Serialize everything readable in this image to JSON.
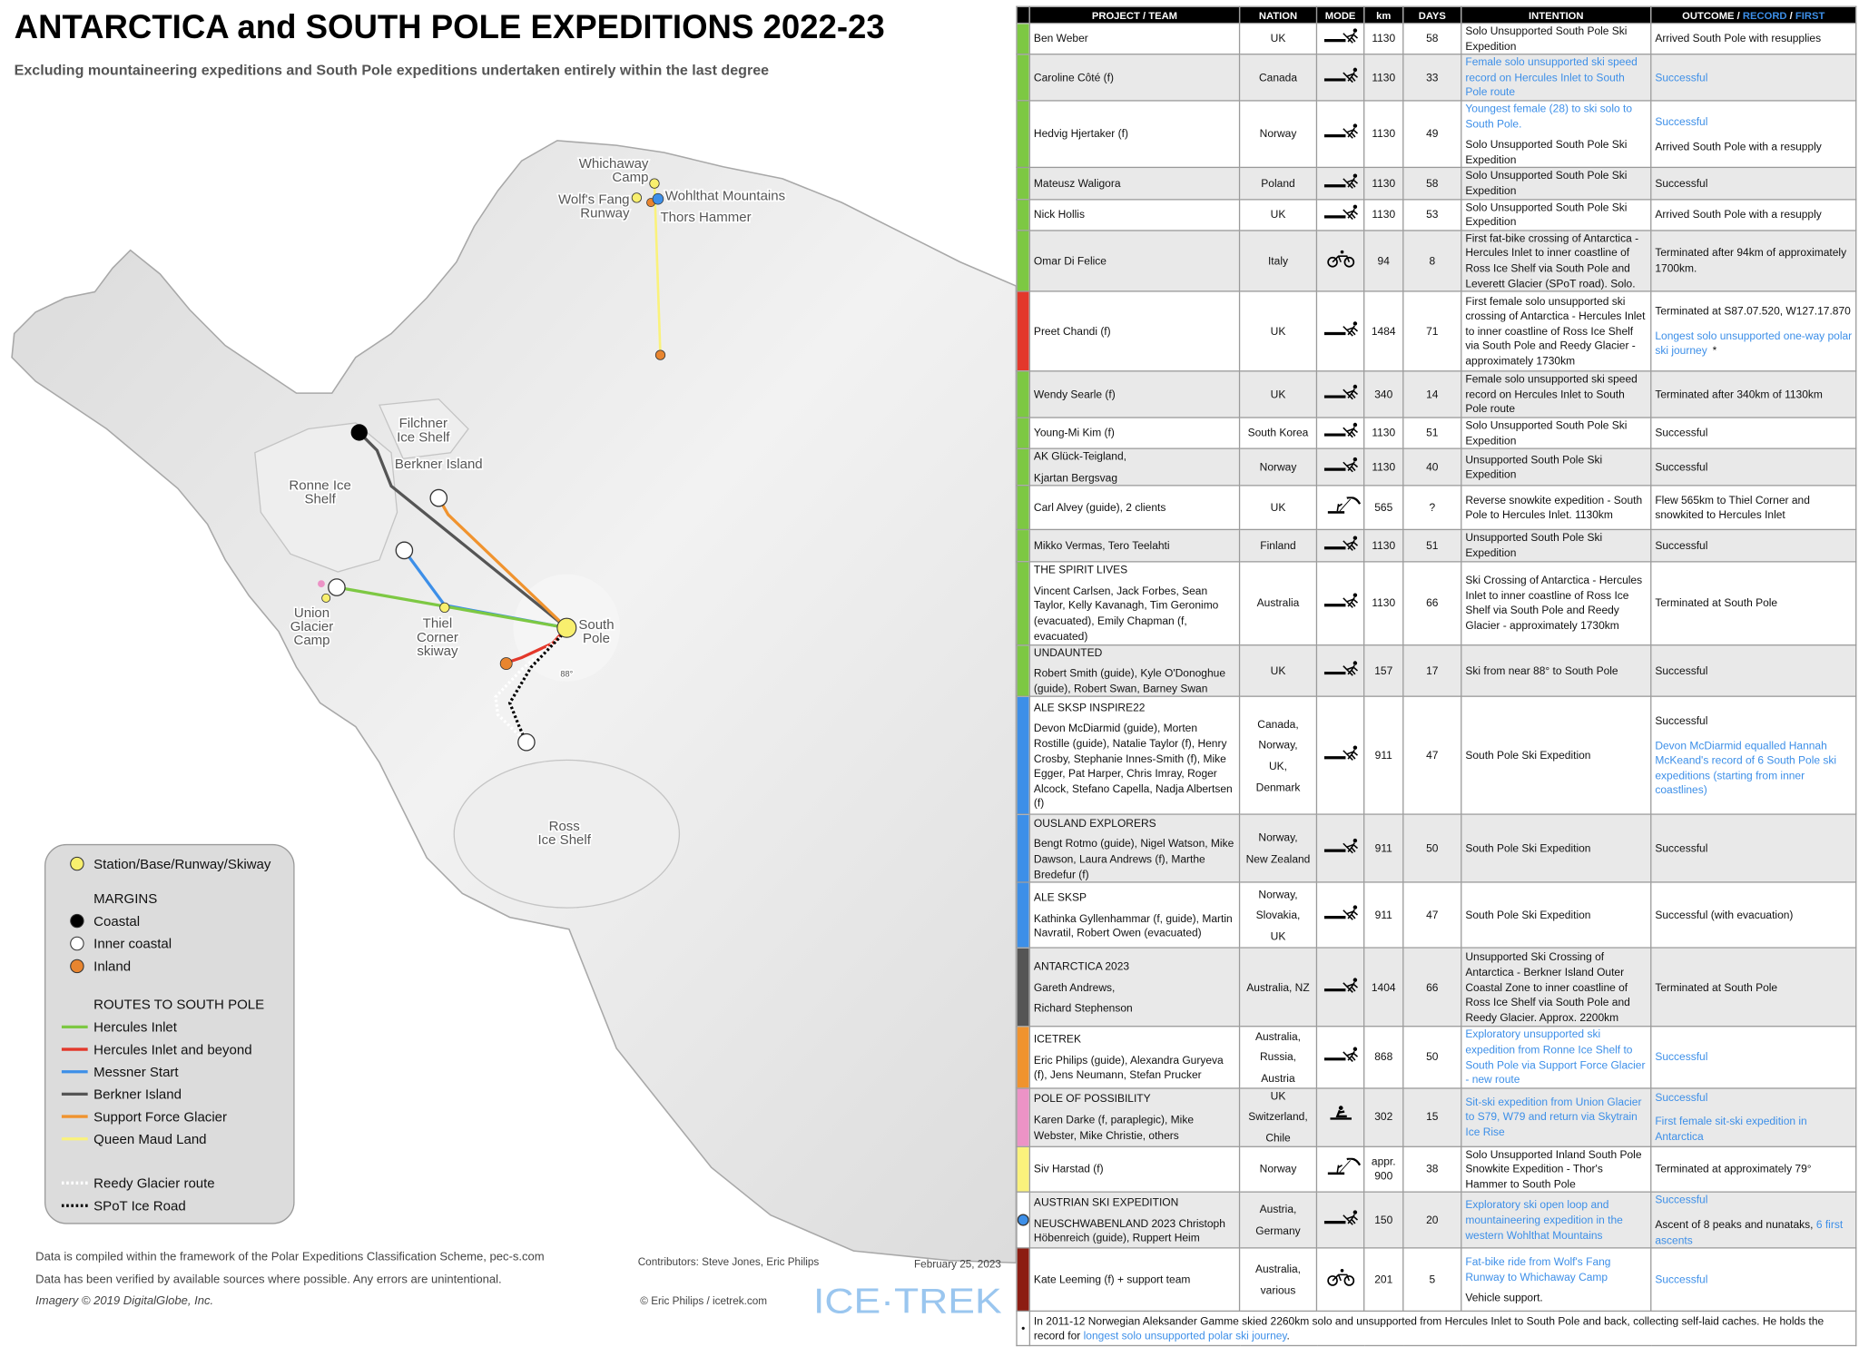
{
  "header": {
    "title": "ANTARCTICA and SOUTH POLE EXPEDITIONS 2022-23",
    "subtitle": "Excluding mountaineering expeditions and South Pole expeditions undertaken entirely within the last degree"
  },
  "map": {
    "labels": [
      [
        "Whichaway",
        "Camp"
      ],
      [
        "Wolf's Fang",
        "Runway"
      ],
      [
        "Wohlthat Mountains"
      ],
      [
        "Thors Hammer"
      ],
      [
        "Filchner",
        "Ice Shelf"
      ],
      [
        "Berkner Island"
      ],
      [
        "Ronne Ice",
        "Shelf"
      ],
      [
        "Union",
        "Glacier",
        "Camp"
      ],
      [
        "Thiel",
        "Corner",
        "skiway"
      ],
      [
        "South",
        "Pole"
      ],
      [
        "88°"
      ],
      [
        "Ross",
        "Ice Shelf"
      ]
    ]
  },
  "legend": {
    "station": {
      "label": "Station/Base/Runway/Skiway",
      "color": "#f8ef6e"
    },
    "margins": {
      "title": "MARGINS",
      "items": [
        {
          "label": "Coastal",
          "color": "#000000"
        },
        {
          "label": "Inner coastal",
          "color": "#ffffff"
        },
        {
          "label": "Inland",
          "color": "#e8852f"
        }
      ]
    },
    "routes": {
      "title": "ROUTES TO SOUTH POLE",
      "items": [
        {
          "label": "Hercules Inlet",
          "color": "#7dc843"
        },
        {
          "label": "Hercules Inlet and beyond",
          "color": "#e3382b"
        },
        {
          "label": "Messner Start",
          "color": "#3d8fe8"
        },
        {
          "label": "Berkner Island",
          "color": "#555555"
        },
        {
          "label": "Support Force Glacier",
          "color": "#f0932e"
        },
        {
          "label": "Queen Maud Land",
          "color": "#faf27c"
        }
      ]
    },
    "paths": [
      {
        "label": "Reedy Glacier route",
        "color": "#ffffff"
      },
      {
        "label": "SPoT Ice Road",
        "color": "#000000"
      }
    ]
  },
  "footer": {
    "note1": "Data is compiled within the framework of the Polar Expeditions Classification Scheme, pec-s.com",
    "note2": "Data has been verified by available sources where possible. Any errors are unintentional.",
    "imagery": "Imagery © 2019 DigitalGlobe, Inc.",
    "contributors": "Contributors: Steve Jones, Eric Philips",
    "date": "February 25, 2023",
    "copyright": "© Eric Philips / icetrek.com",
    "logo": "ICE·TREK"
  },
  "table": {
    "columns": [
      "PROJECT / TEAM",
      "NATION",
      "MODE",
      "km",
      "DAYS",
      "INTENTION",
      [
        [
          "OUTCOME / ",
          {
            "text": "RECORD",
            "color": "#3d8fe8"
          },
          " / ",
          {
            "text": "FIRST",
            "color": "#3d8fe8"
          }
        ]
      ]
    ],
    "rows": [
      {
        "color": "#7dc843",
        "project": "Ben Weber",
        "nation": "UK",
        "km": 1130,
        "days": 58,
        "intention": "Solo Unsupported South Pole Ski Expedition",
        "outcome": "Arrived South Pole with resupplies"
      },
      {
        "color": "#7dc843",
        "project": "Caroline Côté (f)",
        "nation": "Canada",
        "km": 1130,
        "days": 33,
        "intention": {
          "text": "Female solo unsupported ski speed record on Hercules Inlet to South Pole route",
          "color": "#3d8fe8"
        },
        "outcome": {
          "text": "Successful",
          "color": "#3d8fe8"
        }
      },
      {
        "color": "#7dc843",
        "project": "Hedvig Hjertaker (f)",
        "nation": "Norway",
        "km": 1130,
        "days": 49,
        "intention": [
          {
            "text": "Youngest female (28) to ski solo to South Pole.",
            "color": "#3d8fe8"
          },
          "Solo Unsupported South Pole Ski Expedition"
        ],
        "outcome": [
          {
            "text": "Successful",
            "color": "#3d8fe8"
          },
          "Arrived South Pole with a resupply"
        ]
      },
      {
        "color": "#7dc843",
        "project": "Mateusz Waligora",
        "nation": "Poland",
        "km": 1130,
        "days": 58,
        "intention": "Solo Unsupported South Pole Ski Expedition",
        "outcome": "Successful"
      },
      {
        "color": "#7dc843",
        "project": "Nick Hollis",
        "nation": "UK",
        "km": 1130,
        "days": 53,
        "intention": "Solo Unsupported South Pole Ski Expedition",
        "outcome": "Arrived South Pole with a resupply"
      },
      {
        "color": "#7dc843",
        "project": "Omar Di Felice",
        "nation": "Italy",
        "km": 94,
        "days": 8,
        "intention": "First fat-bike crossing of Antarctica - Hercules Inlet to inner coastline of Ross Ice Shelf via South Pole and Leverett Glacier (SPoT road). Solo.",
        "outcome": "Terminated after 94km of approximately 1700km."
      },
      {
        "color": "#e3382b",
        "project": "Preet Chandi (f)",
        "nation": "UK",
        "km": 1484,
        "days": 71,
        "intention": "First female solo unsupported ski crossing of Antarctica - Hercules Inlet to inner coastline of Ross Ice Shelf via South Pole and Reedy Glacier - approximately 1730km",
        "outcome": [
          "Terminated at S87.07.520, W127.17.870",
          [
            {
              "text": "Longest solo unsupported one-way polar ski journey",
              "color": "#3d8fe8"
            },
            " *"
          ]
        ]
      },
      {
        "color": "#7dc843",
        "project": "Wendy Searle (f)",
        "nation": "UK",
        "km": 340,
        "days": 14,
        "intention": "Female solo unsupported ski speed record on Hercules Inlet to South Pole route",
        "outcome": "Terminated after 340km of 1130km"
      },
      {
        "color": "#7dc843",
        "project": "Young-Mi Kim (f)",
        "nation": "South Korea",
        "km": 1130,
        "days": 51,
        "intention": "Solo Unsupported South Pole Ski Expedition",
        "outcome": "Successful"
      },
      {
        "color": "#7dc843",
        "project": [
          "AK Glück-Teigland,",
          "Kjartan Bergsvag"
        ],
        "nation": "Norway",
        "km": 1130,
        "days": 40,
        "intention": "Unsupported South Pole Ski Expedition",
        "outcome": "Successful"
      },
      {
        "color": "#7dc843",
        "project": "Carl Alvey (guide), 2 clients",
        "nation": "UK",
        "km": 565,
        "days": "?",
        "intention": "Reverse snowkite expedition - South Pole to Hercules Inlet. 1130km",
        "outcome": "Flew 565km to Thiel Corner and snowkited to Hercules Inlet"
      },
      {
        "color": "#7dc843",
        "project": "Mikko Vermas, Tero Teelahti",
        "nation": "Finland",
        "km": 1130,
        "days": 51,
        "intention": "Unsupported South Pole Ski Expedition",
        "outcome": "Successful"
      },
      {
        "color": "#7dc843",
        "project": [
          "THE SPIRIT LIVES",
          "Vincent Carlsen, Jack Forbes, Sean Taylor, Kelly Kavanagh, Tim Geronimo (evacuated), Emily Chapman (f, evacuated)"
        ],
        "nation": "Australia",
        "km": 1130,
        "days": 66,
        "intention": "Ski Crossing of Antarctica - Hercules Inlet to inner coastline of Ross Ice Shelf via South Pole and Reedy Glacier - approximately 1730km",
        "outcome": "Terminated at South Pole"
      },
      {
        "color": "#7dc843",
        "project": [
          "UNDAUNTED",
          "Robert Smith (guide), Kyle O'Donoghue (guide), Robert Swan, Barney Swan"
        ],
        "nation": "UK",
        "km": 157,
        "days": 17,
        "intention": "Ski from near 88° to South Pole",
        "outcome": "Successful"
      },
      {
        "color": "#3d8fe8",
        "project": [
          "ALE SKSP INSPIRE22",
          "Devon McDiarmid (guide), Morten Rostille (guide), Natalie Taylor (f), Henry Crosby, Stephanie Innes-Smith (f), Mike Egger, Pat Harper, Chris Imray, Roger Alcock, Stefano Capella, Nadja Albertsen (f)"
        ],
        "nation": [
          "Canada,",
          "Norway,",
          "UK,",
          "Denmark"
        ],
        "km": 911,
        "days": 47,
        "intention": "South Pole Ski Expedition",
        "outcome": [
          "Successful",
          {
            "text": "Devon McDiarmid equalled Hannah McKeand's record of 6 South Pole ski expeditions (starting from inner coastlines)",
            "color": "#3d8fe8"
          }
        ]
      },
      {
        "color": "#3d8fe8",
        "project": [
          "OUSLAND EXPLORERS",
          "Bengt Rotmo (guide), Nigel Watson, Mike Dawson, Laura Andrews (f), Marthe Bredefur (f)"
        ],
        "nation": [
          "Norway,",
          "New Zealand"
        ],
        "km": 911,
        "days": 50,
        "intention": "South Pole Ski Expedition",
        "outcome": "Successful"
      },
      {
        "color": "#3d8fe8",
        "project": [
          "ALE SKSP",
          "Kathinka Gyllenhammar (f, guide), Martin Navratil, Robert Owen (evacuated)"
        ],
        "nation": [
          "Norway,",
          "Slovakia,",
          "UK"
        ],
        "km": 911,
        "days": 47,
        "intention": "South Pole Ski Expedition",
        "outcome": "Successful (with evacuation)"
      },
      {
        "color": "#555555",
        "project": [
          "ANTARCTICA 2023",
          "Gareth Andrews,",
          "Richard Stephenson"
        ],
        "nation": "Australia,  NZ",
        "km": 1404,
        "days": 66,
        "intention": "Unsupported Ski Crossing of Antarctica - Berkner Island Outer Coastal Zone to inner coastline of Ross Ice Shelf via South Pole and Reedy Glacier. Approx. 2200km",
        "outcome": "Terminated at South Pole"
      },
      {
        "color": "#f0932e",
        "project": [
          "ICETREK",
          "Eric Philips (guide), Alexandra Guryeva (f), Jens Neumann, Stefan Prucker"
        ],
        "nation": [
          "Australia,",
          "Russia,",
          "Austria"
        ],
        "km": 868,
        "days": 50,
        "intention": {
          "text": "Exploratory unsupported ski expedition from Ronne Ice Shelf to South Pole via Support Force Glacier - new route",
          "color": "#3d8fe8"
        },
        "outcome": {
          "text": "Successful",
          "color": "#3d8fe8"
        }
      },
      {
        "color": "#ec93c6",
        "project": [
          "POLE OF POSSIBILITY",
          "Karen Darke (f, paraplegic), Mike Webster, Mike Christie, others"
        ],
        "nation": [
          "UK",
          "Switzerland,",
          "Chile"
        ],
        "km": 302,
        "days": 15,
        "intention": {
          "text": "Sit-ski expedition from Union Glacier to S79, W79 and return via Skytrain Ice Rise",
          "color": "#3d8fe8"
        },
        "outcome": [
          {
            "text": "Successful",
            "color": "#3d8fe8"
          },
          {
            "text": "First female sit-ski expedition in Antarctica",
            "color": "#3d8fe8"
          }
        ]
      },
      {
        "color": "#faf27c",
        "project": "Siv Harstad (f)",
        "nation": "Norway",
        "km": "appr. 900",
        "days": 38,
        "intention": "Solo Unsupported Inland South Pole Snowkite Expedition - Thor's Hammer to South Pole",
        "outcome": "Terminated at approximately 79°"
      },
      {
        "color": "#ffffff",
        "marker_color": "#3d8fe8",
        "project": [
          "AUSTRIAN SKI EXPEDITION",
          "NEUSCHWABENLAND 2023 Christoph Höbenreich (guide), Ruppert Heim"
        ],
        "nation": [
          "Austria,",
          "Germany"
        ],
        "km": 150,
        "days": 20,
        "intention": {
          "text": "Exploratory ski open loop and mountaineering expedition in the western Wohlthat Mountains",
          "color": "#3d8fe8"
        },
        "outcome": [
          {
            "text": "Successful",
            "color": "#3d8fe8"
          },
          [
            "Ascent of 8 peaks and nunataks, ",
            {
              "text": "6 first ascents",
              "color": "#3d8fe8"
            }
          ]
        ]
      },
      {
        "color": "#8c1d12",
        "project": "Kate Leeming (f) + support team",
        "nation": [
          "Australia,",
          "various"
        ],
        "km": 201,
        "days": 5,
        "intention": [
          {
            "text": "Fat-bike ride from Wolf's Fang Runway to Whichaway Camp",
            "color": "#3d8fe8"
          },
          "Vehicle support."
        ],
        "outcome": {
          "text": "Successful",
          "color": "#3d8fe8"
        }
      }
    ],
    "footnote": {
      "marker": "•",
      "text": [
        [
          "In 2011-12 Norwegian Aleksander Gamme skied 2260km solo and unsupported from Hercules Inlet to South Pole and back, collecting self-laid caches. He holds the record for ",
          {
            "text": "longest solo unsupported polar ski journey",
            "color": "#3d8fe8"
          },
          "."
        ]
      ]
    }
  }
}
